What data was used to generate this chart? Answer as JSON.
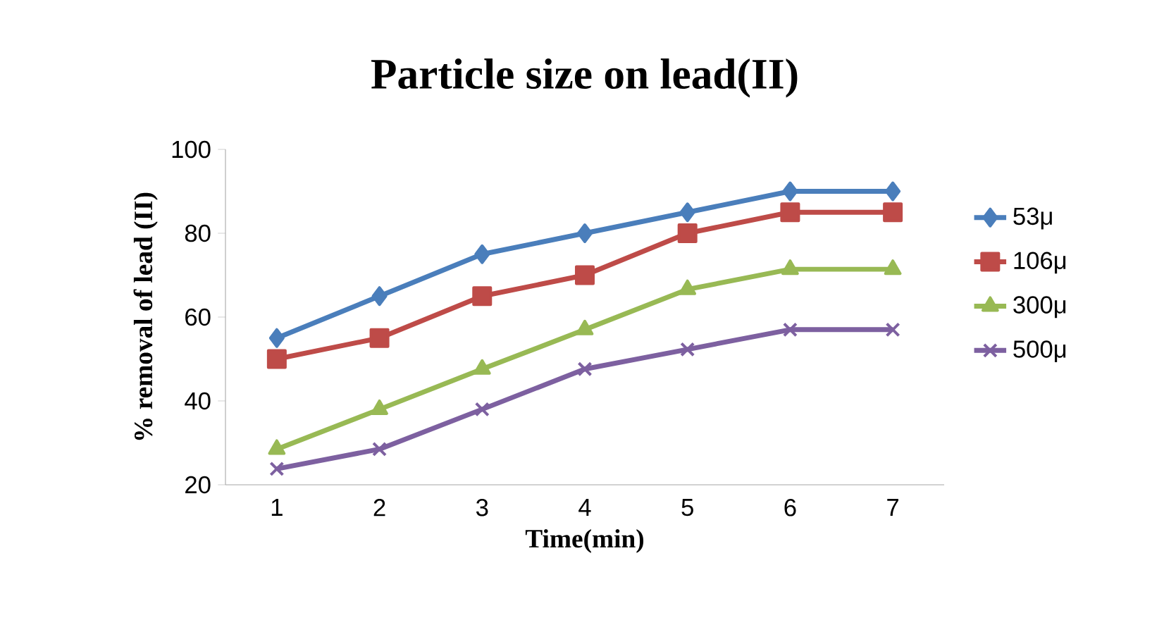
{
  "chart_data": {
    "type": "line",
    "title": "Particle size on lead(II)",
    "xlabel": "Time(min)",
    "ylabel": "% removal of lead (II)",
    "categories": [
      "1",
      "2",
      "3",
      "4",
      "5",
      "6",
      "7"
    ],
    "series": [
      {
        "name": "53μ",
        "color": "#4a7ebb",
        "marker": "diamond",
        "values": [
          55,
          65,
          75,
          80,
          85,
          90,
          90
        ]
      },
      {
        "name": "106μ",
        "color": "#be4b48",
        "marker": "square",
        "values": [
          50,
          55,
          65,
          70,
          80,
          85,
          85
        ]
      },
      {
        "name": "300μ",
        "color": "#98b954",
        "marker": "triangle",
        "values": [
          28.5,
          38,
          47.6,
          57,
          66.6,
          71.4,
          71.4
        ]
      },
      {
        "name": "500μ",
        "color": "#7d60a0",
        "marker": "cross",
        "values": [
          23.8,
          28.5,
          38,
          47.6,
          52.3,
          57,
          57
        ]
      }
    ],
    "ylim": [
      20,
      100
    ],
    "yticks": [
      20,
      40,
      60,
      80,
      100
    ],
    "grid": false,
    "legend": "right",
    "line_style": "solid"
  }
}
